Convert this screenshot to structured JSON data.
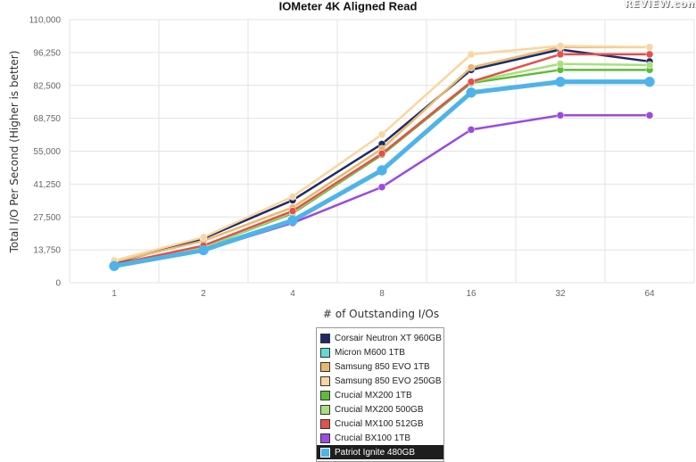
{
  "brand_logo": "REVIEW.com",
  "chart_data": {
    "type": "line",
    "title": "IOMeter 4K Aligned Read",
    "xlabel": "# of Outstanding I/Os",
    "ylabel": "Total I/O Per Second (Higher is better)",
    "categories": [
      "1",
      "2",
      "4",
      "8",
      "16",
      "32",
      "64"
    ],
    "ylim": [
      0,
      110000
    ],
    "yticks": [
      "0",
      "13,750",
      "27,500",
      "41,250",
      "55,000",
      "68,750",
      "82,500",
      "96,250",
      "110,000"
    ],
    "grid": true,
    "legend_position": "bottom",
    "series": [
      {
        "name": "Corsair Neutron XT 960GB",
        "color": "#1c2a6b",
        "values": [
          8200,
          18500,
          34500,
          58000,
          89000,
          97500,
          92500
        ]
      },
      {
        "name": "Micron M600 1TB",
        "color": "#5fdcd2",
        "values": [
          7500,
          14500,
          26500,
          47500,
          80000,
          84500,
          84500
        ]
      },
      {
        "name": "Samsung 850 EVO 1TB",
        "color": "#e8b96d",
        "values": [
          8700,
          17500,
          31500,
          56000,
          90000,
          98500,
          98500
        ]
      },
      {
        "name": "Samsung 850 EVO 250GB",
        "color": "#fbd5a0",
        "values": [
          9300,
          19000,
          36000,
          62000,
          95500,
          99000,
          98500
        ]
      },
      {
        "name": "Crucial MX200 1TB",
        "color": "#5cbb3a",
        "values": [
          7400,
          15000,
          29000,
          53500,
          83500,
          89000,
          89000
        ]
      },
      {
        "name": "Crucial MX200 500GB",
        "color": "#a8e07c",
        "values": [
          7400,
          15000,
          29500,
          54000,
          84000,
          91500,
          91000
        ]
      },
      {
        "name": "Crucial MX100 512GB",
        "color": "#e4504a",
        "values": [
          7600,
          15500,
          30000,
          54000,
          84000,
          95500,
          95500
        ]
      },
      {
        "name": "Crucial BX100 1TB",
        "color": "#9b4bdf",
        "values": [
          7400,
          13500,
          25000,
          40000,
          64000,
          70000,
          70000
        ]
      },
      {
        "name": "Patriot Ignite 480GB",
        "color": "#4fb3ea",
        "values": [
          7000,
          13600,
          26000,
          47000,
          79500,
          84000,
          84000
        ]
      }
    ]
  }
}
